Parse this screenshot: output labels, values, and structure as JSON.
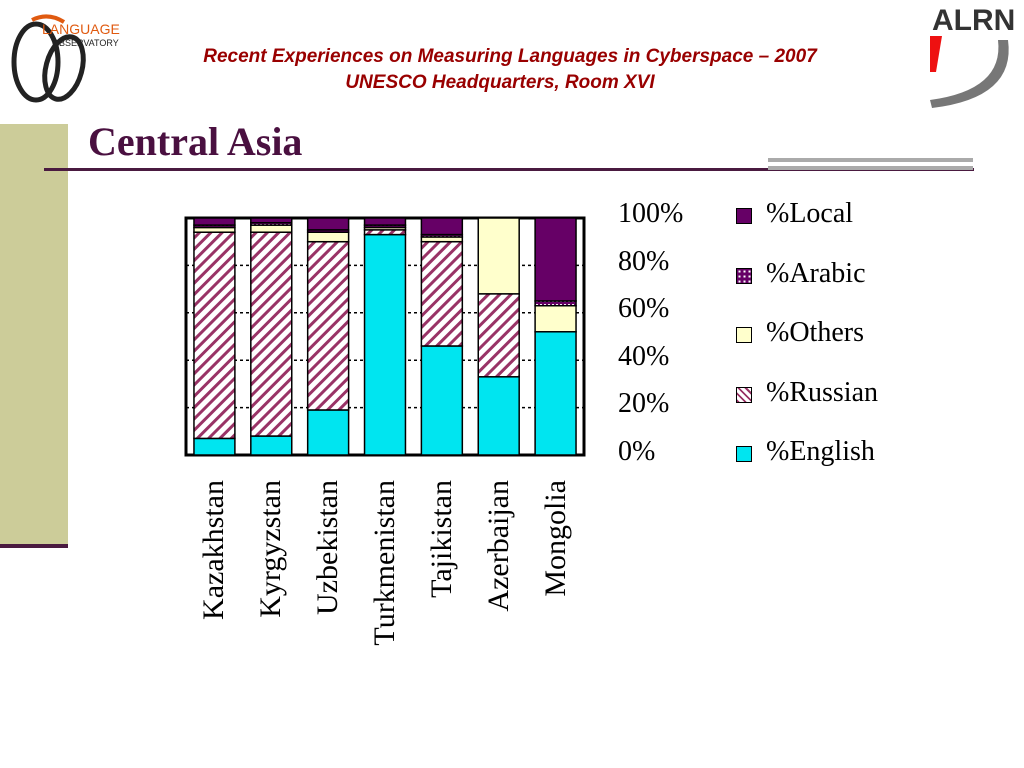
{
  "header": {
    "line1": "Recent Experiences on Measuring Languages in Cyberspace – 2007",
    "line2": "UNESCO Headquarters, Room XVI"
  },
  "logos": {
    "left_text1": "LANGUAGE",
    "left_text2": "OBSERVATORY",
    "right_text": "ALRN"
  },
  "title": "Central Asia",
  "colors": {
    "local": "#660066",
    "arabic": "#660066",
    "others": "#ffffcc",
    "russian_bg": "#ffffff",
    "russian_fg": "#993366",
    "english": "#00e5f0",
    "title": "#4a1040",
    "header": "#990000"
  },
  "chart_data": {
    "type": "bar",
    "stacked": true,
    "percent": true,
    "categories": [
      "Kazakhstan",
      "Kyrgyzstan",
      "Uzbekistan",
      "Turkmenistan",
      "Tajikistan",
      "Azerbaijan",
      "Mongolia"
    ],
    "series": [
      {
        "name": "%English",
        "values": [
          7,
          8,
          19,
          93,
          46,
          33,
          52
        ]
      },
      {
        "name": "%Russian",
        "values": [
          87,
          86,
          71,
          2,
          44,
          35,
          0
        ]
      },
      {
        "name": "%Others",
        "values": [
          2,
          3,
          4,
          1,
          2,
          32,
          11
        ]
      },
      {
        "name": "%Arabic",
        "values": [
          1,
          1,
          1,
          1,
          1,
          0,
          2
        ]
      },
      {
        "name": "%Local",
        "values": [
          3,
          2,
          5,
          3,
          7,
          0,
          35
        ]
      }
    ],
    "y_ticks": [
      "100%",
      "80%",
      "60%",
      "40%",
      "20%",
      "0%"
    ],
    "legend_order": [
      "%Local",
      "%Arabic",
      "%Others",
      "%Russian",
      "%English"
    ],
    "ylim": [
      0,
      100
    ],
    "grid": true
  }
}
